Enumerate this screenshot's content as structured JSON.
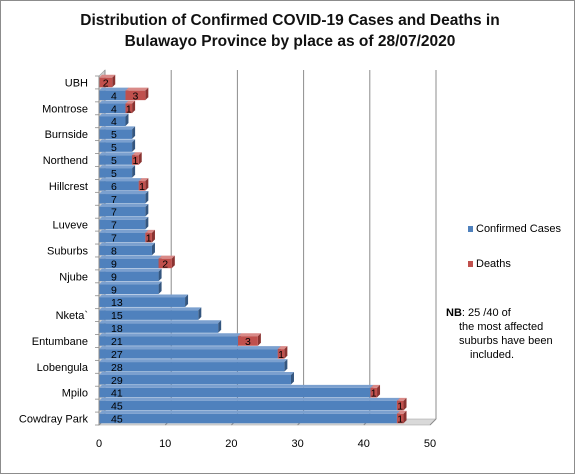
{
  "chart_data": {
    "type": "bar",
    "orientation": "horizontal",
    "title_lines": [
      "Distribution of Confirmed COVID-19 Cases and Deaths in",
      "Bulawayo Province by place as of 28/07/2020"
    ],
    "xlim": [
      0,
      50
    ],
    "xticks": [
      0,
      10,
      20,
      30,
      40,
      50
    ],
    "grid": true,
    "legend_placement": "right",
    "category_labels": {
      "0": "Cowdray Park",
      "2": "Mpilo",
      "4": "Lobengula",
      "6": "Entumbane",
      "8": "Nketa`",
      "11": "Njube",
      "13": "Suburbs",
      "15": "Luveve",
      "18": "Hillcrest",
      "20": "Northend",
      "22": "Burnside",
      "24": "Montrose",
      "26": "UBH"
    },
    "series": [
      {
        "name": "Confirmed Cases",
        "color": "#4f81bd",
        "values": [
          45,
          45,
          41,
          29,
          28,
          27,
          21,
          18,
          15,
          13,
          9,
          9,
          9,
          8,
          7,
          7,
          7,
          7,
          6,
          5,
          5,
          5,
          5,
          4,
          4,
          4,
          null
        ],
        "labels": [
          "45",
          "45",
          "41",
          "29",
          "28",
          "27",
          "21",
          "18",
          "15",
          "13",
          "9",
          "9",
          "9",
          "8",
          "7",
          "7",
          "7",
          "7",
          "6",
          "5",
          "5",
          "5",
          "5",
          "4",
          "4",
          "4",
          ""
        ]
      },
      {
        "name": "Deaths",
        "color": "#c0504d",
        "values": [
          1,
          1,
          1,
          null,
          null,
          1,
          3,
          null,
          null,
          null,
          null,
          null,
          2,
          null,
          1,
          null,
          null,
          null,
          1,
          null,
          1,
          null,
          null,
          null,
          1,
          3,
          2
        ],
        "labels": [
          "1",
          "1",
          "1",
          "",
          "",
          "1",
          "3",
          "",
          "",
          "",
          "",
          "",
          "2",
          "",
          "1",
          "",
          "",
          "",
          "1",
          "",
          "1",
          "",
          "",
          "",
          "1",
          "3",
          "2"
        ]
      }
    ]
  },
  "legend": {
    "confirmed": "Confirmed Cases",
    "deaths": "Deaths",
    "confirmed_color": "#4f81bd",
    "deaths_color": "#c0504d"
  },
  "note": {
    "bold": "NB",
    "lines": [
      ": 25 /40 of",
      "the most  affected",
      "suburbs have been",
      "included."
    ]
  }
}
